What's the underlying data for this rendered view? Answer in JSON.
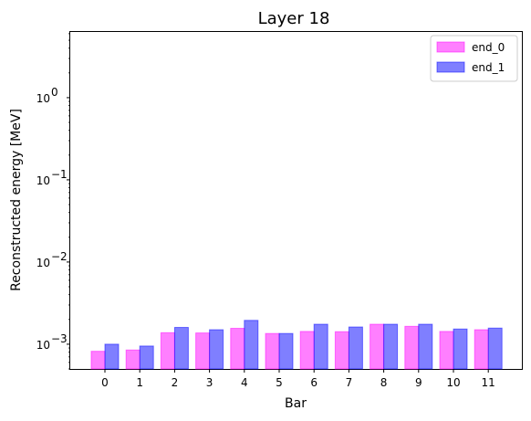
{
  "chart_data": {
    "type": "bar",
    "title": "Layer 18",
    "xlabel": "Bar",
    "ylabel": "Reconstructed energy [MeV]",
    "yscale": "log",
    "ylim": [
      0.0005,
      6.3
    ],
    "y_ticks": [
      {
        "value": 0.001,
        "base": "10",
        "exp": "−3"
      },
      {
        "value": 0.01,
        "base": "10",
        "exp": "−2"
      },
      {
        "value": 0.1,
        "base": "10",
        "exp": "−1"
      },
      {
        "value": 1,
        "base": "10",
        "exp": "0"
      }
    ],
    "categories": [
      "0",
      "1",
      "2",
      "3",
      "4",
      "5",
      "6",
      "7",
      "8",
      "9",
      "10",
      "11"
    ],
    "series": [
      {
        "name": "end_0",
        "color": "#ff00ff",
        "values": [
          0.00082,
          0.00085,
          0.00138,
          0.00137,
          0.00156,
          0.00135,
          0.00143,
          0.00142,
          0.00175,
          0.00165,
          0.00143,
          0.0015
        ]
      },
      {
        "name": "end_1",
        "color": "#0000ff",
        "values": [
          0.001,
          0.00095,
          0.0016,
          0.0015,
          0.00195,
          0.00135,
          0.00175,
          0.00162,
          0.00175,
          0.00175,
          0.00153,
          0.00157
        ]
      }
    ],
    "legend_position": "top-right",
    "grid": false
  }
}
